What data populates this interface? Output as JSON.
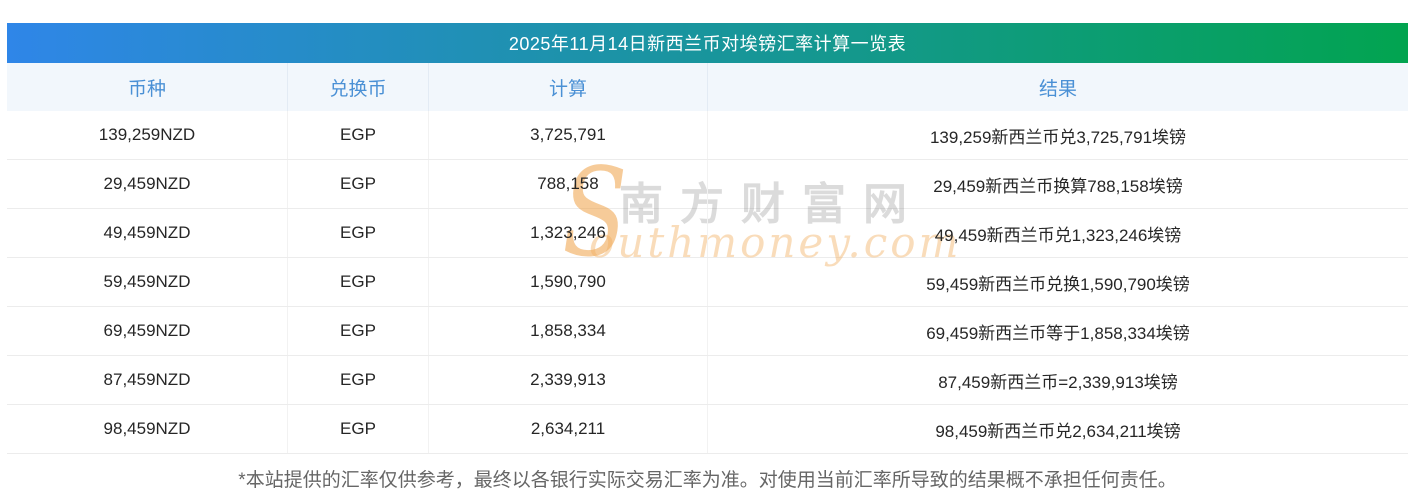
{
  "title": "2025年11月14日新西兰币对埃镑汇率计算一览表",
  "table": {
    "columns": [
      "币种",
      "兑换币",
      "计算",
      "结果"
    ],
    "rows": [
      {
        "amount": "139,259NZD",
        "target": "EGP",
        "calc": "3,725,791",
        "result": "139,259新西兰币兑3,725,791埃镑"
      },
      {
        "amount": "29,459NZD",
        "target": "EGP",
        "calc": "788,158",
        "result": "29,459新西兰币换算788,158埃镑"
      },
      {
        "amount": "49,459NZD",
        "target": "EGP",
        "calc": "1,323,246",
        "result": "49,459新西兰币兑1,323,246埃镑"
      },
      {
        "amount": "59,459NZD",
        "target": "EGP",
        "calc": "1,590,790",
        "result": "59,459新西兰币兑换1,590,790埃镑"
      },
      {
        "amount": "69,459NZD",
        "target": "EGP",
        "calc": "1,858,334",
        "result": "69,459新西兰币等于1,858,334埃镑"
      },
      {
        "amount": "87,459NZD",
        "target": "EGP",
        "calc": "2,339,913",
        "result": "87,459新西兰币=2,339,913埃镑"
      },
      {
        "amount": "98,459NZD",
        "target": "EGP",
        "calc": "2,634,211",
        "result": "98,459新西兰币兑2,634,211埃镑"
      }
    ]
  },
  "watermark": {
    "s_glyph": "S",
    "site_name_cn": "南方财富网",
    "site_domain": "outhmoney.com"
  },
  "footer_note": "*本站提供的汇率仅供参考，最终以各银行实际交易汇率为准。对使用当前汇率所导致的结果概不承担任何责任。",
  "colors": {
    "title-grad-start": "#2F86E8",
    "title-grad-end": "#02A450",
    "title-text": "#FFFFFF",
    "header-bg": "#F2F7FC",
    "header-text": "#4A90D5",
    "header-sep": "#E3EBF4",
    "row-text": "#262626",
    "row-border": "#ECECEC",
    "footer-text": "#666666",
    "watermark-orange": "#EEA046",
    "watermark-gray": "#6E6E6E"
  }
}
